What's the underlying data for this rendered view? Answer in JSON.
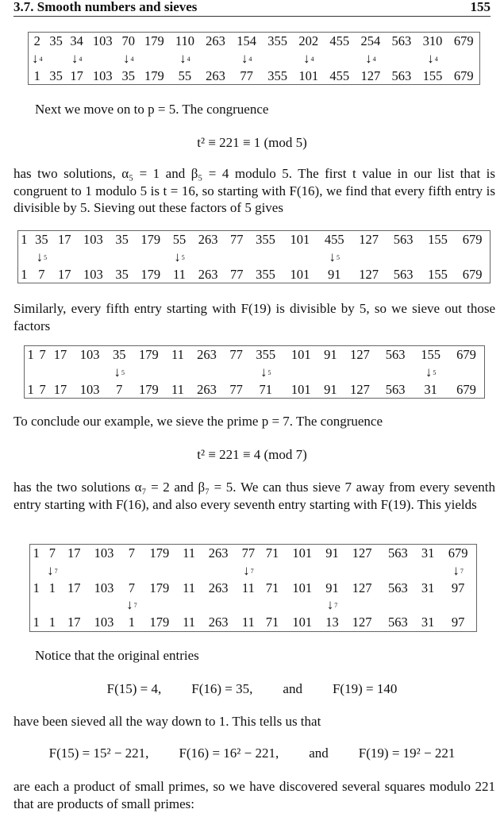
{
  "header": {
    "section": "3.7. Smooth numbers and sieves",
    "page": "155"
  },
  "tables": [
    {
      "rows": [
        [
          "2",
          "35",
          "34",
          "103",
          "70",
          "179",
          "110",
          "263",
          "154",
          "355",
          "202",
          "455",
          "254",
          "563",
          "310",
          "679"
        ],
        [
          4,
          null,
          4,
          null,
          4,
          null,
          4,
          null,
          4,
          null,
          4,
          null,
          4,
          null,
          4,
          null
        ],
        [
          "1",
          "35",
          "17",
          "103",
          "35",
          "179",
          "55",
          "263",
          "77",
          "355",
          "101",
          "455",
          "127",
          "563",
          "155",
          "679"
        ]
      ]
    },
    {
      "rows": [
        [
          "1",
          "35",
          "17",
          "103",
          "35",
          "179",
          "55",
          "263",
          "77",
          "355",
          "101",
          "455",
          "127",
          "563",
          "155",
          "679"
        ],
        [
          null,
          5,
          null,
          null,
          null,
          null,
          5,
          null,
          null,
          null,
          null,
          5,
          null,
          null,
          null,
          null
        ],
        [
          "1",
          "7",
          "17",
          "103",
          "35",
          "179",
          "11",
          "263",
          "77",
          "355",
          "101",
          "91",
          "127",
          "563",
          "155",
          "679"
        ]
      ]
    },
    {
      "rows": [
        [
          "1",
          "7",
          "17",
          "103",
          "35",
          "179",
          "11",
          "263",
          "77",
          "355",
          "101",
          "91",
          "127",
          "563",
          "155",
          "679"
        ],
        [
          null,
          null,
          null,
          null,
          5,
          null,
          null,
          null,
          null,
          5,
          null,
          null,
          null,
          null,
          5,
          null
        ],
        [
          "1",
          "7",
          "17",
          "103",
          "7",
          "179",
          "11",
          "263",
          "77",
          "71",
          "101",
          "91",
          "127",
          "563",
          "31",
          "679"
        ]
      ]
    },
    {
      "rows": [
        [
          "1",
          "7",
          "17",
          "103",
          "7",
          "179",
          "11",
          "263",
          "77",
          "71",
          "101",
          "91",
          "127",
          "563",
          "31",
          "679"
        ],
        [
          null,
          7,
          null,
          null,
          null,
          null,
          null,
          null,
          7,
          null,
          null,
          null,
          null,
          null,
          null,
          7
        ],
        [
          "1",
          "1",
          "17",
          "103",
          "7",
          "179",
          "11",
          "263",
          "11",
          "71",
          "101",
          "91",
          "127",
          "563",
          "31",
          "97"
        ],
        [
          null,
          null,
          null,
          null,
          7,
          null,
          null,
          null,
          null,
          null,
          null,
          7,
          null,
          null,
          null,
          null
        ],
        [
          "1",
          "1",
          "17",
          "103",
          "1",
          "179",
          "11",
          "263",
          "11",
          "71",
          "101",
          "13",
          "127",
          "563",
          "31",
          "97"
        ]
      ]
    }
  ],
  "text": {
    "p1": "Next we move on to p = 5. The congruence",
    "eq1": "t² ≡ 221 ≡ 1   (mod 5)",
    "p2": "has two solutions, α₅ = 1 and β₅ = 4 modulo 5. The first t value in our list that is congruent to 1 modulo 5 is t = 16, so starting with F(16), we find that every fifth entry is divisible by 5. Sieving out these factors of 5 gives",
    "p3": "Similarly, every fifth entry starting with F(19) is divisible by 5, so we sieve out those factors",
    "p4": "To conclude our example, we sieve the prime p = 7. The congruence",
    "eq2": "t² ≡ 221 ≡ 4   (mod 7)",
    "p5": "has the two solutions α₇ = 2 and β₇ = 5. We can thus sieve 7 away from every seventh entry starting with F(16), and also every seventh entry starting with F(19). This yields",
    "p6": "Notice that the original entries",
    "eq3": [
      "F(15) = 4,",
      "F(16) = 35,",
      "and",
      "F(19) = 140"
    ],
    "p7": "have been sieved all the way down to 1. This tells us that",
    "eq4": [
      "F(15) = 15² − 221,",
      "F(16) = 16² − 221,",
      "and",
      "F(19) = 19² − 221"
    ],
    "p8": "are each a product of small primes, so we have discovered several squares modulo 221 that are products of small primes:"
  }
}
